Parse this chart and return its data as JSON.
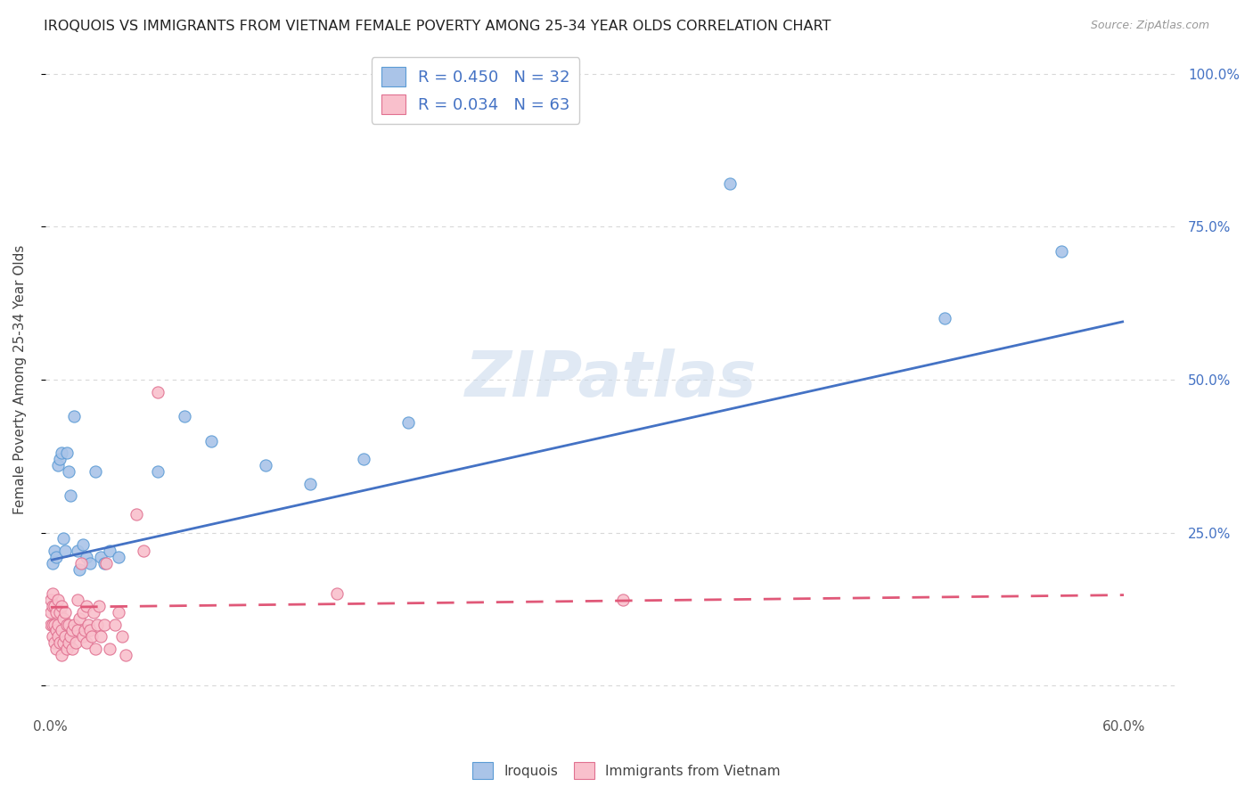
{
  "title": "IROQUOIS VS IMMIGRANTS FROM VIETNAM FEMALE POVERTY AMONG 25-34 YEAR OLDS CORRELATION CHART",
  "source": "Source: ZipAtlas.com",
  "ylabel": "Female Poverty Among 25-34 Year Olds",
  "xlim": [
    -0.003,
    0.63
  ],
  "ylim": [
    -0.04,
    1.04
  ],
  "xticks": [
    0.0,
    0.1,
    0.2,
    0.3,
    0.4,
    0.5,
    0.6
  ],
  "xticklabels": [
    "0.0%",
    "",
    "",
    "",
    "",
    "",
    "60.0%"
  ],
  "yticks": [
    0.0,
    0.25,
    0.5,
    0.75,
    1.0
  ],
  "yticklabels": [
    "",
    "25.0%",
    "50.0%",
    "75.0%",
    "100.0%"
  ],
  "background_color": "#ffffff",
  "grid_color": "#d8d8d8",
  "watermark": "ZIPatlas",
  "iroquois_color": "#aac4e8",
  "iroquois_edge_color": "#5b9bd5",
  "iroquois_line_color": "#4472c4",
  "iroquois_R": 0.45,
  "iroquois_N": 32,
  "iroquois_x": [
    0.001,
    0.002,
    0.003,
    0.004,
    0.005,
    0.006,
    0.007,
    0.008,
    0.009,
    0.01,
    0.011,
    0.013,
    0.015,
    0.016,
    0.018,
    0.02,
    0.022,
    0.025,
    0.028,
    0.03,
    0.033,
    0.038,
    0.06,
    0.075,
    0.09,
    0.12,
    0.145,
    0.175,
    0.2,
    0.38,
    0.5,
    0.565
  ],
  "iroquois_y": [
    0.2,
    0.22,
    0.21,
    0.36,
    0.37,
    0.38,
    0.24,
    0.22,
    0.38,
    0.35,
    0.31,
    0.44,
    0.22,
    0.19,
    0.23,
    0.21,
    0.2,
    0.35,
    0.21,
    0.2,
    0.22,
    0.21,
    0.35,
    0.44,
    0.4,
    0.36,
    0.33,
    0.37,
    0.43,
    0.82,
    0.6,
    0.71
  ],
  "vietnam_color": "#f9c0cc",
  "vietnam_edge_color": "#e07090",
  "vietnam_line_color": "#e05878",
  "vietnam_R": 0.034,
  "vietnam_N": 63,
  "vietnam_x": [
    0.0,
    0.0,
    0.0,
    0.001,
    0.001,
    0.001,
    0.001,
    0.002,
    0.002,
    0.002,
    0.003,
    0.003,
    0.003,
    0.004,
    0.004,
    0.004,
    0.005,
    0.005,
    0.006,
    0.006,
    0.006,
    0.007,
    0.007,
    0.008,
    0.008,
    0.009,
    0.009,
    0.01,
    0.01,
    0.011,
    0.012,
    0.012,
    0.013,
    0.014,
    0.015,
    0.015,
    0.016,
    0.017,
    0.018,
    0.018,
    0.019,
    0.02,
    0.02,
    0.021,
    0.022,
    0.023,
    0.024,
    0.025,
    0.026,
    0.027,
    0.028,
    0.03,
    0.031,
    0.033,
    0.036,
    0.038,
    0.04,
    0.042,
    0.048,
    0.052,
    0.06,
    0.16,
    0.32
  ],
  "vietnam_y": [
    0.1,
    0.12,
    0.14,
    0.08,
    0.1,
    0.13,
    0.15,
    0.07,
    0.1,
    0.13,
    0.06,
    0.09,
    0.12,
    0.08,
    0.1,
    0.14,
    0.07,
    0.12,
    0.05,
    0.09,
    0.13,
    0.07,
    0.11,
    0.08,
    0.12,
    0.06,
    0.1,
    0.07,
    0.1,
    0.08,
    0.06,
    0.09,
    0.1,
    0.07,
    0.09,
    0.14,
    0.11,
    0.2,
    0.08,
    0.12,
    0.09,
    0.07,
    0.13,
    0.1,
    0.09,
    0.08,
    0.12,
    0.06,
    0.1,
    0.13,
    0.08,
    0.1,
    0.2,
    0.06,
    0.1,
    0.12,
    0.08,
    0.05,
    0.28,
    0.22,
    0.48,
    0.15,
    0.14
  ],
  "legend_iroquois_label": "Iroquois",
  "legend_vietnam_label": "Immigrants from Vietnam",
  "iroquois_trendline_x": [
    0.0,
    0.6
  ],
  "iroquois_trendline_y": [
    0.205,
    0.595
  ],
  "vietnam_trendline_x": [
    0.0,
    0.6
  ],
  "vietnam_trendline_y": [
    0.128,
    0.148
  ]
}
